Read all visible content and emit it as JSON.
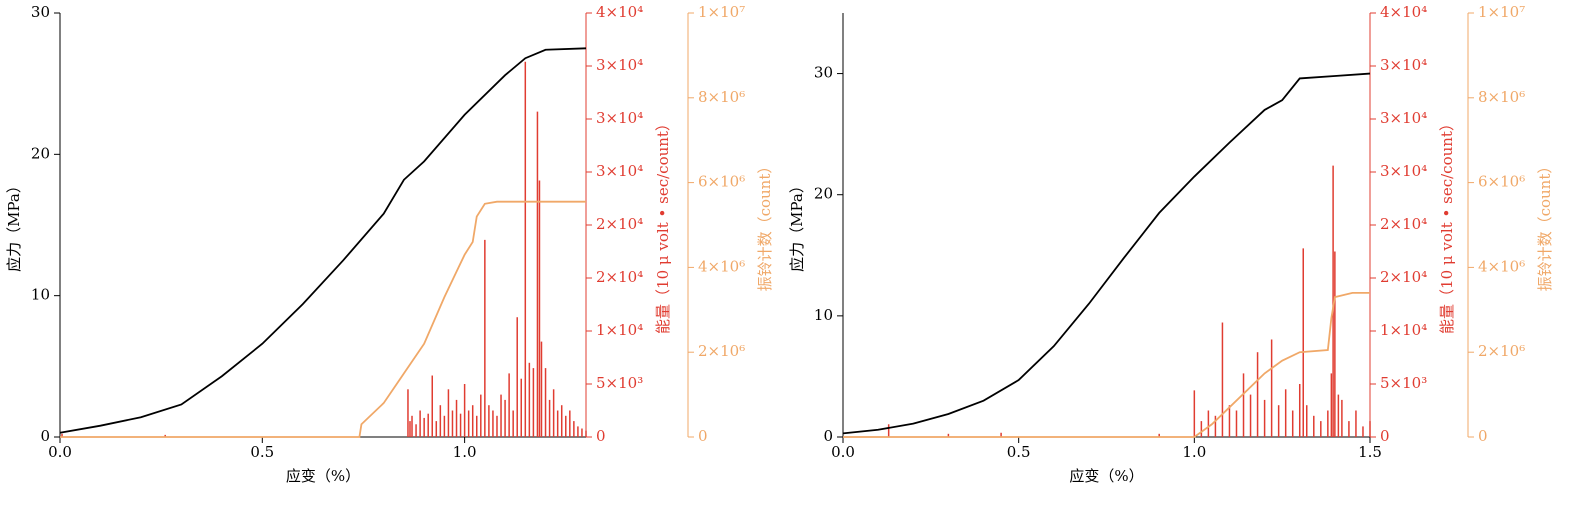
{
  "chart_data": [
    {
      "type": "line",
      "x_label": "应变（%）",
      "y_label": "应力（MPa）",
      "y2_label": "能量（10 μ volt • sec/count）",
      "y3_label": "振铃计数（count）",
      "xlim": [
        0,
        1.3
      ],
      "xticks": [
        {
          "value": 0,
          "label": "0.0"
        },
        {
          "value": 0.5,
          "label": "0.5"
        },
        {
          "value": 1,
          "label": "1.0"
        }
      ],
      "ylim": [
        0,
        30
      ],
      "yticks": [
        0,
        10,
        20,
        30
      ],
      "y2lim": [
        0,
        40000
      ],
      "y2ticks": [
        0,
        {
          "value": 5000,
          "label": "5×10³"
        },
        {
          "value": 10000,
          "label": "1×10⁴"
        },
        {
          "value": 15000,
          "label": "2×10⁴"
        },
        {
          "value": 20000,
          "label": "2×10⁴"
        },
        {
          "value": 25000,
          "label": "3×10⁴"
        },
        {
          "value": 30000,
          "label": "3×10⁴"
        },
        {
          "value": 35000,
          "label": "3×10⁴"
        },
        {
          "value": 40000,
          "label": "4×10⁴"
        }
      ],
      "y3lim": [
        0,
        10000000
      ],
      "y3ticks": [
        0,
        {
          "value": 2000000,
          "label": "2×10⁶"
        },
        {
          "value": 4000000,
          "label": "4×10⁶"
        },
        {
          "value": 6000000,
          "label": "6×10⁶"
        },
        {
          "value": 8000000,
          "label": "8×10⁶"
        },
        {
          "value": 10000000,
          "label": "1×10⁷"
        }
      ],
      "series": [
        {
          "color": "#000000",
          "axis": "y",
          "style": "line",
          "x": [
            0,
            0.1,
            0.2,
            0.3,
            0.4,
            0.5,
            0.6,
            0.7,
            0.8,
            0.85,
            0.9,
            1.0,
            1.1,
            1.15,
            1.2,
            1.3
          ],
          "values": [
            0.3,
            0.8,
            1.4,
            2.3,
            4.3,
            6.6,
            9.4,
            12.5,
            15.8,
            18.2,
            19.5,
            22.8,
            25.6,
            26.8,
            27.4,
            27.5
          ]
        },
        {
          "color": "#e03c31",
          "axis": "y2",
          "style": "spikes",
          "x": [
            0.005,
            0.26,
            0.86,
            0.865,
            0.87,
            0.88,
            0.89,
            0.9,
            0.91,
            0.92,
            0.93,
            0.94,
            0.95,
            0.96,
            0.97,
            0.98,
            0.99,
            1.0,
            1.01,
            1.02,
            1.03,
            1.04,
            1.05,
            1.06,
            1.07,
            1.08,
            1.09,
            1.1,
            1.11,
            1.12,
            1.13,
            1.14,
            1.15,
            1.16,
            1.17,
            1.18,
            1.185,
            1.19,
            1.2,
            1.21,
            1.22,
            1.23,
            1.24,
            1.25,
            1.26,
            1.27,
            1.28,
            1.29,
            1.3
          ],
          "values": [
            300,
            200,
            4500,
            1500,
            2000,
            1200,
            2500,
            1800,
            2200,
            5800,
            1500,
            3000,
            2000,
            4500,
            2500,
            3500,
            2200,
            5000,
            2500,
            3000,
            2000,
            4000,
            18600,
            3000,
            2500,
            2000,
            4000,
            3500,
            6000,
            2500,
            11300,
            5500,
            35400,
            7000,
            6500,
            30700,
            24200,
            9000,
            6500,
            3500,
            4500,
            2500,
            3000,
            2000,
            2500,
            1500,
            1000,
            800,
            600
          ]
        },
        {
          "color": "#f0a868",
          "axis": "y3",
          "style": "line",
          "x": [
            0,
            0.74,
            0.745,
            0.8,
            0.85,
            0.9,
            0.95,
            0.98,
            1.0,
            1.02,
            1.03,
            1.05,
            1.08,
            1.3
          ],
          "values": [
            0,
            0,
            300000,
            800000,
            1500000,
            2200000,
            3300000,
            3900000,
            4300000,
            4600000,
            5200000,
            5500000,
            5550000,
            5550000
          ]
        }
      ]
    },
    {
      "type": "line",
      "x_label": "应变（%）",
      "y_label": "应力（MPa）",
      "y2_label": "能量（10 μ volt • sec/count）",
      "y3_label": "振铃计数（count）",
      "xlim": [
        0,
        1.5
      ],
      "xticks": [
        {
          "value": 0,
          "label": "0.0"
        },
        {
          "value": 0.5,
          "label": "0.5"
        },
        {
          "value": 1,
          "label": "1.0"
        },
        {
          "value": 1.5,
          "label": "1.5"
        }
      ],
      "ylim": [
        0,
        35
      ],
      "yticks": [
        0,
        10,
        20,
        30
      ],
      "y2lim": [
        0,
        40000
      ],
      "y2ticks": [
        0,
        {
          "value": 5000,
          "label": "5×10³"
        },
        {
          "value": 10000,
          "label": "1×10⁴"
        },
        {
          "value": 15000,
          "label": "2×10⁴"
        },
        {
          "value": 20000,
          "label": "2×10⁴"
        },
        {
          "value": 25000,
          "label": "3×10⁴"
        },
        {
          "value": 30000,
          "label": "3×10⁴"
        },
        {
          "value": 35000,
          "label": "3×10⁴"
        },
        {
          "value": 40000,
          "label": "4×10⁴"
        }
      ],
      "y3lim": [
        0,
        10000000
      ],
      "y3ticks": [
        0,
        {
          "value": 2000000,
          "label": "2×10⁶"
        },
        {
          "value": 4000000,
          "label": "4×10⁶"
        },
        {
          "value": 6000000,
          "label": "6×10⁶"
        },
        {
          "value": 8000000,
          "label": "8×10⁶"
        },
        {
          "value": 10000000,
          "label": "1×10⁷"
        }
      ],
      "series": [
        {
          "color": "#000000",
          "axis": "y",
          "style": "line",
          "x": [
            0,
            0.1,
            0.2,
            0.3,
            0.4,
            0.5,
            0.6,
            0.7,
            0.8,
            0.9,
            1.0,
            1.1,
            1.2,
            1.25,
            1.3,
            1.4,
            1.5
          ],
          "values": [
            0.3,
            0.6,
            1.1,
            1.9,
            3.0,
            4.7,
            7.5,
            11.0,
            14.8,
            18.5,
            21.5,
            24.3,
            27.0,
            27.8,
            29.6,
            29.8,
            30.0
          ]
        },
        {
          "color": "#e03c31",
          "axis": "y2",
          "style": "spikes",
          "x": [
            0.13,
            0.3,
            0.45,
            0.9,
            1.0,
            1.02,
            1.04,
            1.06,
            1.08,
            1.1,
            1.12,
            1.14,
            1.16,
            1.18,
            1.2,
            1.22,
            1.24,
            1.26,
            1.28,
            1.3,
            1.31,
            1.32,
            1.34,
            1.36,
            1.38,
            1.39,
            1.395,
            1.4,
            1.41,
            1.42,
            1.44,
            1.46,
            1.48,
            1.5
          ],
          "values": [
            1200,
            300,
            400,
            300,
            4400,
            1500,
            2500,
            2000,
            10800,
            3000,
            2500,
            6000,
            4000,
            8000,
            3500,
            9200,
            3000,
            4500,
            2500,
            5000,
            17800,
            3000,
            2000,
            1500,
            2500,
            6000,
            25600,
            17500,
            4000,
            3500,
            1500,
            2500,
            1000,
            1500
          ]
        },
        {
          "color": "#f0a868",
          "axis": "y3",
          "style": "line",
          "x": [
            0,
            1.0,
            1.05,
            1.1,
            1.15,
            1.2,
            1.25,
            1.3,
            1.38,
            1.39,
            1.4,
            1.45,
            1.5
          ],
          "values": [
            0,
            0,
            300000,
            700000,
            1100000,
            1500000,
            1800000,
            2000000,
            2050000,
            2800000,
            3300000,
            3400000,
            3400000
          ]
        }
      ]
    }
  ]
}
